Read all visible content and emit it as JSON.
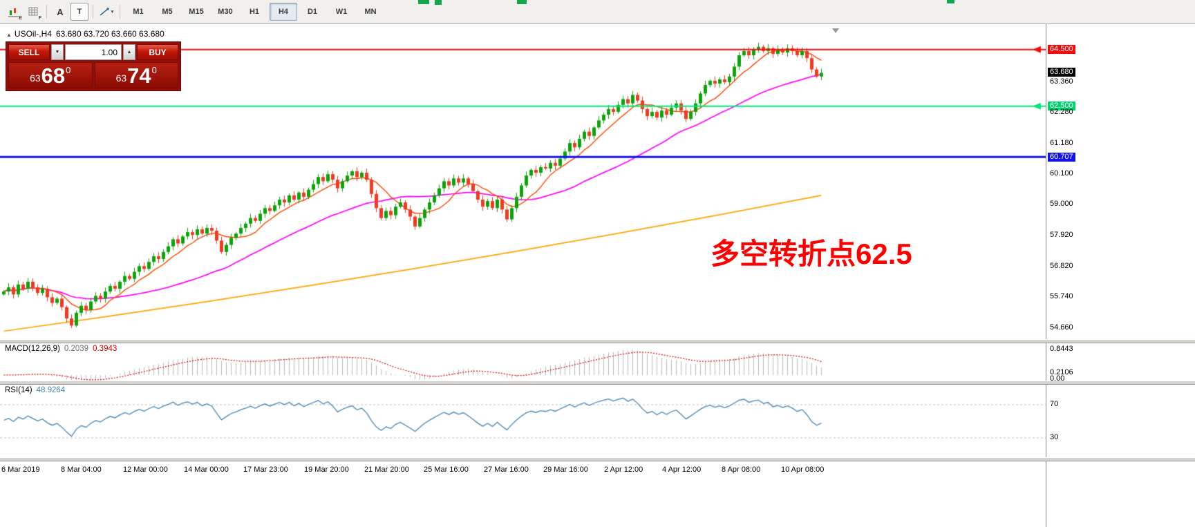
{
  "toolbar": {
    "icon_labels": {
      "chart": "E",
      "grid": "F",
      "letter_a": "A",
      "letter_t": "T"
    },
    "timeframes": [
      "M1",
      "M5",
      "M15",
      "M30",
      "H1",
      "H4",
      "D1",
      "W1",
      "MN"
    ],
    "active_timeframe": "H4"
  },
  "icons": {
    "collapse": "▲",
    "caret_down": "▼",
    "caret_up": "▲"
  },
  "chart_header": {
    "symbol": "USOil-,H4",
    "ohlc": "63.680 63.720 63.660 63.680"
  },
  "trade_panel": {
    "sell_label": "SELL",
    "buy_label": "BUY",
    "volume": "1.00",
    "bid": {
      "small": "63",
      "big": "68",
      "sup": "0"
    },
    "ask": {
      "small": "63",
      "big": "74",
      "sup": "0"
    }
  },
  "annotation": {
    "text": "多空转折点62.5",
    "color": "#FE0000"
  },
  "price_axis": {
    "labels": [
      {
        "text": "64.500",
        "type": "red"
      },
      {
        "text": "63.680",
        "type": "black"
      },
      {
        "text": "63.360",
        "type": "plain"
      },
      {
        "text": "62.500",
        "type": "green"
      },
      {
        "text": "62.280",
        "type": "plain"
      },
      {
        "text": "61.180",
        "type": "plain"
      },
      {
        "text": "60.707",
        "type": "blue"
      },
      {
        "text": "60.100",
        "type": "plain"
      },
      {
        "text": "59.000",
        "type": "plain"
      },
      {
        "text": "57.920",
        "type": "plain"
      },
      {
        "text": "56.820",
        "type": "plain"
      },
      {
        "text": "55.740",
        "type": "plain"
      },
      {
        "text": "54.660",
        "type": "plain"
      }
    ]
  },
  "macd_panel": {
    "label": "MACD(12,26,9)",
    "main_value": "0.2039",
    "signal_value": "0.3943",
    "axis_top": "0.8443",
    "axis_mid": "0.2106",
    "axis_zero": "0.00"
  },
  "rsi_panel": {
    "label": "RSI(14)",
    "value": "48.9264",
    "level_top": "70",
    "level_bottom": "30"
  },
  "timeline": [
    "6 Mar 2019",
    "8 Mar 04:00",
    "12 Mar 00:00",
    "14 Mar 00:00",
    "17 Mar 23:00",
    "19 Mar 20:00",
    "21 Mar 20:00",
    "25 Mar 16:00",
    "27 Mar 16:00",
    "29 Mar 16:00",
    "2 Apr 12:00",
    "4 Apr 12:00",
    "8 Apr 08:00",
    "10 Apr 08:00"
  ],
  "chart_data": {
    "type": "candlestick",
    "symbol": "USOil",
    "timeframe": "H4",
    "ohlc_display": {
      "open": 63.68,
      "high": 63.72,
      "low": 63.66,
      "close": 63.68
    },
    "first_open": 55.85,
    "closes": [
      55.95,
      56.1,
      55.85,
      56.2,
      56.05,
      56.3,
      56.1,
      55.9,
      56.05,
      55.75,
      55.55,
      55.7,
      55.4,
      55.0,
      54.75,
      55.2,
      55.45,
      55.3,
      55.6,
      55.8,
      55.7,
      55.95,
      56.15,
      56.05,
      56.3,
      56.5,
      56.4,
      56.65,
      56.85,
      56.75,
      57.0,
      57.2,
      57.1,
      57.35,
      57.55,
      57.8,
      57.65,
      57.9,
      58.05,
      57.95,
      58.15,
      58.0,
      58.2,
      58.1,
      57.75,
      57.35,
      57.6,
      57.85,
      58.0,
      58.2,
      58.35,
      58.55,
      58.45,
      58.7,
      58.9,
      58.8,
      59.0,
      59.2,
      59.1,
      59.35,
      59.2,
      59.45,
      59.3,
      59.55,
      59.75,
      60.0,
      59.85,
      60.1,
      59.9,
      59.6,
      59.85,
      60.05,
      60.2,
      60.0,
      60.15,
      59.9,
      59.4,
      58.9,
      58.55,
      58.8,
      58.65,
      58.95,
      59.1,
      58.85,
      58.6,
      58.25,
      58.55,
      58.85,
      59.1,
      59.35,
      59.6,
      59.85,
      59.7,
      59.95,
      59.8,
      59.95,
      59.75,
      59.5,
      59.2,
      58.95,
      59.15,
      58.9,
      59.2,
      58.85,
      58.5,
      58.9,
      59.3,
      59.7,
      60.05,
      60.25,
      60.15,
      60.35,
      60.3,
      60.5,
      60.4,
      60.65,
      60.9,
      61.2,
      61.05,
      61.35,
      61.6,
      61.45,
      61.75,
      62.0,
      62.2,
      62.4,
      62.3,
      62.55,
      62.75,
      62.6,
      62.9,
      62.7,
      62.4,
      62.15,
      62.3,
      62.1,
      62.35,
      62.2,
      62.45,
      62.6,
      62.35,
      62.05,
      62.3,
      62.6,
      62.95,
      63.25,
      63.4,
      63.3,
      63.45,
      63.35,
      63.55,
      63.9,
      64.3,
      64.45,
      64.3,
      64.5,
      64.6,
      64.45,
      64.55,
      64.35,
      64.5,
      64.4,
      64.55,
      64.45,
      64.3,
      64.45,
      64.2,
      63.8,
      63.55,
      63.68
    ],
    "low_wick": {
      "index": 14,
      "price": 54.66
    },
    "high_wick": {
      "index": 156,
      "price": 64.75
    },
    "price_axis": {
      "top_price": 65.4,
      "bottom_price": 54.27
    },
    "hlines": [
      {
        "price": 64.5,
        "color": "#f40b0b",
        "width": 2,
        "arrow": true
      },
      {
        "price": 62.5,
        "color": "#00e676",
        "width": 2,
        "arrow": true
      },
      {
        "price": 60.707,
        "color": "#1414e8",
        "width": 3,
        "arrow": false
      }
    ],
    "current_price": 63.68,
    "trend_line": {
      "start_price": 54.55,
      "end_price": 59.35
    },
    "ma_fast_period": 8,
    "ma_mid_period": 34,
    "colors": {
      "bull": "#0ca30c",
      "bear": "#ee3b22",
      "ma_fast": "#ff4500",
      "ma_mid": "#ff00ff",
      "ma_slow": "#ffa500",
      "rsi": "#4682b4",
      "macd_hist": "#b9b9b9",
      "macd_signal": "#e00000"
    },
    "macd": {
      "fast": 12,
      "slow": 26,
      "signal": 9,
      "current_main": 0.2039,
      "current_signal": 0.3943,
      "max_axis": 0.8443
    },
    "rsi": {
      "period": 14,
      "current": 48.9264,
      "levels": [
        70,
        30
      ]
    }
  }
}
